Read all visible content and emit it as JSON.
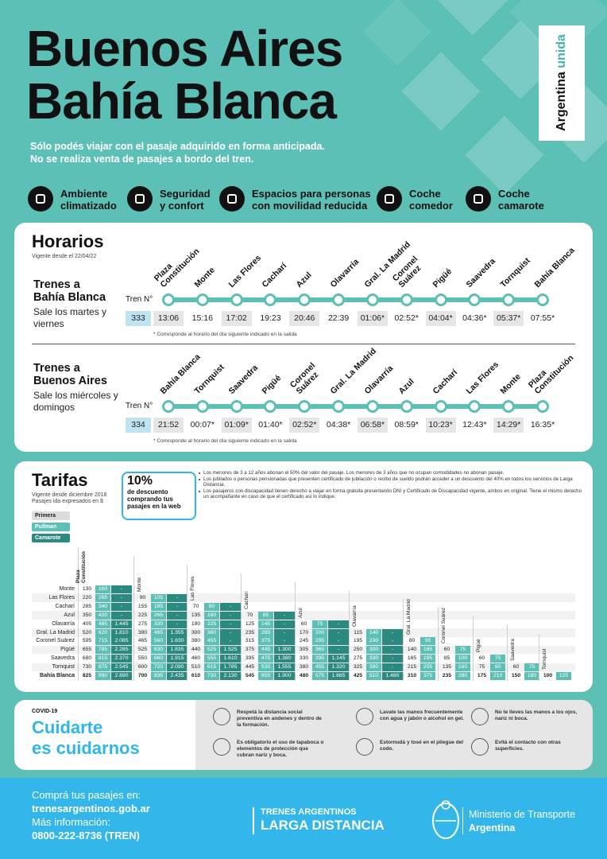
{
  "header": {
    "title": [
      "Buenos Aires",
      "Bahía Blanca"
    ],
    "badge": {
      "main": "Argentina",
      "accent": "unida"
    },
    "subtitle": [
      "Sólo podés viajar con el pasaje adquirido en forma anticipada.",
      "No se realiza venta de pasajes a bordo del tren."
    ]
  },
  "features": [
    {
      "label": [
        "Ambiente",
        "climatizado"
      ]
    },
    {
      "label": [
        "Seguridad",
        "y confort"
      ]
    },
    {
      "label": [
        "Espacios para personas",
        "con movilidad reducida"
      ]
    },
    {
      "label": [
        "Coche",
        "comedor"
      ]
    },
    {
      "label": [
        "Coche",
        "camarote"
      ]
    }
  ],
  "schedule": {
    "title": "Horarios",
    "valid_from": "Vigente desde el 22/04/22",
    "train_label": "Tren N°",
    "trips": [
      {
        "heading": [
          "Trenes a",
          "Bahía Blanca"
        ],
        "days": [
          "Sale los martes y",
          "viernes"
        ],
        "number": "333",
        "stations": [
          [
            "Plaza",
            "Constitución"
          ],
          [
            "Monte"
          ],
          [
            "Las Flores"
          ],
          [
            "Cacharí"
          ],
          [
            "Azul"
          ],
          [
            "Olavarría"
          ],
          [
            "Gral. La Madrid"
          ],
          [
            "Coronel",
            "Suárez"
          ],
          [
            "Pigüé"
          ],
          [
            "Saavedra"
          ],
          [
            "Tornquist"
          ],
          [
            "Bahía Blanca"
          ]
        ],
        "times": [
          "13:06",
          "15:16",
          "17:02",
          "19:23",
          "20:46",
          "22:39",
          "01:06*",
          "02:52*",
          "04:04*",
          "04:36*",
          "05:37*",
          "07:55*"
        ],
        "note": "* Corresponde al horario del día siguiente indicado en la salida"
      },
      {
        "heading": [
          "Trenes a",
          "Buenos Aires"
        ],
        "days": [
          "Sale los miércoles y",
          "domingos"
        ],
        "number": "334",
        "stations": [
          [
            "Bahía Blanca"
          ],
          [
            "Tornquist"
          ],
          [
            "Saavedra"
          ],
          [
            "Pigüé"
          ],
          [
            "Coronel",
            "Suárez"
          ],
          [
            "Gral. La Madrid"
          ],
          [
            "Olavarría"
          ],
          [
            "Azul"
          ],
          [
            "Cacharí"
          ],
          [
            "Las Flores"
          ],
          [
            "Monte"
          ],
          [
            "Plaza",
            "Constitución"
          ]
        ],
        "times": [
          "21:52",
          "00:07*",
          "01:09*",
          "01:40*",
          "02:52*",
          "04:38*",
          "06:58*",
          "08:59*",
          "10:23*",
          "12:43*",
          "14:29*",
          "16:35*"
        ],
        "note": "* Corresponde al horario del día siguiente indicado en la salida"
      }
    ]
  },
  "fares": {
    "title": "Tarifas",
    "valid_from": "Vigente desde diciembre 2018",
    "units": "Pasajes ida expresados en $",
    "discount": {
      "value": "10%",
      "text": [
        "de descuento",
        "comprando tus",
        "pasajes en la web"
      ]
    },
    "notes": [
      "Los menores de 3 a 12 años abonan el 50% del valor del pasaje. Los menores de 3 años que no ocupan comodidades no abonan pasaje.",
      "Los jubilados o personas pensionadas que presenten certificado de jubilación o recibo de sueldo podrán acceder a un descuento del 40% en todos los servicios de Larga Distancia.",
      "Los pasajeros con discapacidad tienen derecho a viajar en forma gratuita presentando DNI y Certificado de Discapacidad vigente, ambos en original. Tiene el mismo derecho un acompañante en caso de que el certificado así lo indique."
    ],
    "classes": [
      "Primera",
      "Pullman",
      "Camarote"
    ],
    "destinations": [
      "Monte",
      "Las Flores",
      "Cacharí",
      "Azul",
      "Olavarría",
      "Gral. La Madrid",
      "Coronel Suárez",
      "Pigüé",
      "Saavedra",
      "Tornquist",
      "Bahía Blanca"
    ],
    "origins": [
      {
        "name": [
          "Plaza",
          "Constitución"
        ],
        "fares": [
          [
            "130",
            "160",
            "-"
          ],
          [
            "220",
            "265",
            "-"
          ],
          [
            "285",
            "340",
            "-"
          ],
          [
            "350",
            "420",
            "-"
          ],
          [
            "405",
            "485",
            "1.445"
          ],
          [
            "520",
            "620",
            "1.810"
          ],
          [
            "595",
            "715",
            "2.085"
          ],
          [
            "655",
            "785",
            "2.285"
          ],
          [
            "680",
            "815",
            "2.370"
          ],
          [
            "730",
            "875",
            "2.545"
          ],
          [
            "825",
            "990",
            "2.890"
          ]
        ]
      },
      {
        "name": [
          "Monte"
        ],
        "fares": [
          [
            "90",
            "105",
            "-"
          ],
          [
            "155",
            "185",
            "-"
          ],
          [
            "225",
            "265",
            "-"
          ],
          [
            "275",
            "330",
            "-"
          ],
          [
            "390",
            "465",
            "1.355"
          ],
          [
            "465",
            "560",
            "1.630"
          ],
          [
            "525",
            "630",
            "1.835"
          ],
          [
            "550",
            "660",
            "1.915"
          ],
          [
            "600",
            "720",
            "2.090"
          ],
          [
            "700",
            "835",
            "2.435"
          ]
        ]
      },
      {
        "name": [
          "Las Flores"
        ],
        "fares": [
          [
            "70",
            "80",
            "-"
          ],
          [
            "135",
            "160",
            "-"
          ],
          [
            "190",
            "225",
            "-"
          ],
          [
            "300",
            "360",
            "-"
          ],
          [
            "380",
            "455",
            "-"
          ],
          [
            "440",
            "525",
            "1.525"
          ],
          [
            "460",
            "555",
            "1.610"
          ],
          [
            "510",
            "615",
            "1.785"
          ],
          [
            "610",
            "730",
            "2.130"
          ]
        ]
      },
      {
        "name": [
          "Cacharí"
        ],
        "fares": [
          [
            "70",
            "85",
            "-"
          ],
          [
            "125",
            "145",
            "-"
          ],
          [
            "235",
            "285",
            "-"
          ],
          [
            "315",
            "375",
            "-"
          ],
          [
            "375",
            "445",
            "1.300"
          ],
          [
            "395",
            "475",
            "1.380"
          ],
          [
            "445",
            "535",
            "1.555"
          ],
          [
            "545",
            "655",
            "1.900"
          ]
        ]
      },
      {
        "name": [
          "Azul"
        ],
        "fares": [
          [
            "60",
            "75",
            "-"
          ],
          [
            "170",
            "200",
            "-"
          ],
          [
            "245",
            "295",
            "-"
          ],
          [
            "305",
            "365",
            "-"
          ],
          [
            "330",
            "395",
            "1.145"
          ],
          [
            "380",
            "455",
            "1.320"
          ],
          [
            "480",
            "575",
            "1.665"
          ]
        ]
      },
      {
        "name": [
          "Olavarría"
        ],
        "fares": [
          [
            "115",
            "140",
            "-"
          ],
          [
            "195",
            "230",
            "-"
          ],
          [
            "250",
            "300",
            "-"
          ],
          [
            "275",
            "330",
            "-"
          ],
          [
            "325",
            "390",
            "-"
          ],
          [
            "425",
            "510",
            "1.480"
          ]
        ]
      },
      {
        "name": [
          "Gral. La Madrid"
        ],
        "fares": [
          [
            "80",
            "95"
          ],
          [
            "140",
            "165"
          ],
          [
            "165",
            "195"
          ],
          [
            "215",
            "255"
          ],
          [
            "310",
            "375"
          ]
        ]
      },
      {
        "name": [
          "Coronel Suárez"
        ],
        "fares": [
          [
            "60",
            "75"
          ],
          [
            "85",
            "100"
          ],
          [
            "135",
            "160"
          ],
          [
            "235",
            "280"
          ]
        ]
      },
      {
        "name": [
          "Pigüé"
        ],
        "fares": [
          [
            "60",
            "75"
          ],
          [
            "75",
            "90"
          ],
          [
            "175",
            "210"
          ]
        ]
      },
      {
        "name": [
          "Saavedra"
        ],
        "fares": [
          [
            "60",
            "75"
          ],
          [
            "150",
            "180"
          ]
        ]
      },
      {
        "name": [
          "Tornquist"
        ],
        "fares": [
          [
            "100",
            "120"
          ]
        ]
      }
    ]
  },
  "covid": {
    "label": "COVID-19",
    "title": [
      "Cuidarte",
      "es cuidarnos"
    ],
    "tips": [
      "Respetá la distancia social preventiva en andenes y dentro de la formación.",
      "Lavate las manos frecuentemente con agua y jabón o alcohol en gel.",
      "No te lleves las manos a los ojos, nariz ni boca.",
      "Es obligatorio el uso de tapaboca o elementos de protección que cubran nariz y boca.",
      "Estornudá y tosé en el pliegue del codo.",
      "Evitá el contacto con otras superficies."
    ]
  },
  "footer": {
    "buy_label": "Comprá tus pasajes en:",
    "website": "trenesargentinos.gob.ar",
    "info_label": "Más información:",
    "phone": "0800-222-8736 (TREN)",
    "brand": [
      "TRENES ARGENTINOS",
      "LARGA DISTANCIA"
    ],
    "ministry": [
      "Ministerio de Transporte",
      "Argentina"
    ]
  }
}
